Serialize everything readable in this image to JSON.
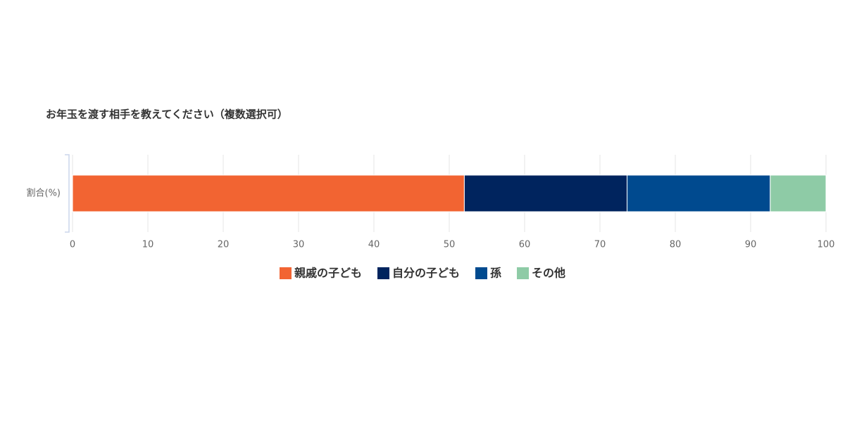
{
  "chart_data": {
    "type": "bar",
    "orientation": "horizontal",
    "stacked": true,
    "title": "お年玉を渡す相手を教えてください（複数選択可）",
    "categories": [
      "割合(%)"
    ],
    "series": [
      {
        "name": "親戚の子ども",
        "color": "#f26432",
        "values": [
          52
        ]
      },
      {
        "name": "自分の子ども",
        "color": "#00245e",
        "values": [
          21.6
        ]
      },
      {
        "name": "孫",
        "color": "#004a8f",
        "values": [
          19
        ]
      },
      {
        "name": "その他",
        "color": "#8ecba6",
        "values": [
          7.4
        ]
      }
    ],
    "xlim": [
      0,
      100
    ],
    "xticks": [
      0,
      10,
      20,
      30,
      40,
      50,
      60,
      70,
      80,
      90,
      100
    ],
    "grid": true,
    "legend": "bottom"
  }
}
